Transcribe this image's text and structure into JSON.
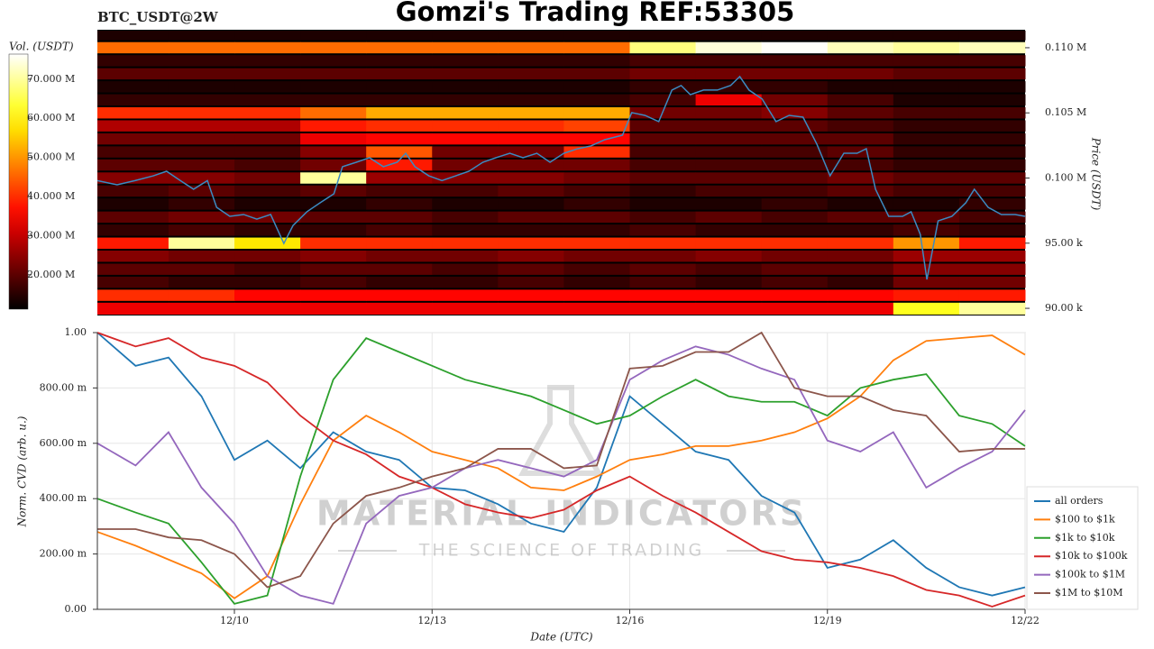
{
  "chart_data": [
    {
      "type": "heatmap",
      "title": "Gomzi's Trading REF:53305",
      "subtitle": "BTC_USDT@2W",
      "y_label": "Price (USDT)",
      "yaxis_position": "right",
      "colorbar_label": "Vol. (USDT)",
      "colormap": "hot",
      "clim": [
        11200000,
        76400000
      ],
      "cticks": [
        {
          "value": 20000000,
          "label": "20.000 M"
        },
        {
          "value": 30000000,
          "label": "30.000 M"
        },
        {
          "value": 40000000,
          "label": "40.000 M"
        },
        {
          "value": 50000000,
          "label": "50.000 M"
        },
        {
          "value": 60000000,
          "label": "60.000 M"
        },
        {
          "value": 70000000,
          "label": "70.000 M"
        }
      ],
      "xlim": [
        7.92,
        22
      ],
      "ylim": [
        89450,
        111380
      ],
      "yticks": [
        {
          "value": 90000,
          "label": "90.00 k"
        },
        {
          "value": 95000,
          "label": "95.00 k"
        },
        {
          "value": 100000,
          "label": "0.100 M"
        },
        {
          "value": 105000,
          "label": "0.105 M"
        },
        {
          "value": 110000,
          "label": "0.110 M"
        }
      ],
      "x_edges": [
        7.92,
        9,
        10,
        11,
        12,
        13,
        14,
        15,
        16,
        17,
        18,
        19,
        20,
        21,
        22
      ],
      "y_edges": [
        89450,
        90500,
        91500,
        92500,
        93500,
        94500,
        95500,
        96500,
        97500,
        98500,
        99500,
        100500,
        101500,
        102500,
        103500,
        104500,
        105500,
        106500,
        107500,
        108500,
        109500,
        110500,
        111380
      ],
      "z": [
        [
          34000000,
          34000000,
          34000000,
          34000000,
          34000000,
          34000000,
          34000000,
          34000000,
          34000000,
          34000000,
          34000000,
          34000000,
          62000000,
          70000000
        ],
        [
          40000000,
          40000000,
          36000000,
          36000000,
          36000000,
          36000000,
          36000000,
          36000000,
          36000000,
          36000000,
          36000000,
          36000000,
          38000000,
          38000000
        ],
        [
          18000000,
          16000000,
          16000000,
          18000000,
          16000000,
          16000000,
          18000000,
          16000000,
          18000000,
          16000000,
          18000000,
          16000000,
          22000000,
          22000000
        ],
        [
          20000000,
          20000000,
          18000000,
          20000000,
          20000000,
          18000000,
          20000000,
          18000000,
          20000000,
          18000000,
          20000000,
          20000000,
          24000000,
          24000000
        ],
        [
          24000000,
          22000000,
          22000000,
          24000000,
          22000000,
          22000000,
          24000000,
          22000000,
          22000000,
          24000000,
          22000000,
          22000000,
          26000000,
          26000000
        ],
        [
          38000000,
          70000000,
          58000000,
          40000000,
          40000000,
          40000000,
          40000000,
          40000000,
          40000000,
          40000000,
          40000000,
          40000000,
          50000000,
          38000000
        ],
        [
          16000000,
          18000000,
          16000000,
          16000000,
          18000000,
          16000000,
          16000000,
          16000000,
          18000000,
          16000000,
          16000000,
          16000000,
          18000000,
          16000000
        ],
        [
          20000000,
          22000000,
          22000000,
          20000000,
          20000000,
          18000000,
          20000000,
          20000000,
          18000000,
          20000000,
          18000000,
          20000000,
          20000000,
          18000000
        ],
        [
          14000000,
          16000000,
          14000000,
          14000000,
          16000000,
          14000000,
          14000000,
          16000000,
          14000000,
          14000000,
          16000000,
          14000000,
          14000000,
          16000000
        ],
        [
          18000000,
          20000000,
          18000000,
          20000000,
          18000000,
          18000000,
          20000000,
          18000000,
          16000000,
          18000000,
          18000000,
          20000000,
          18000000,
          18000000
        ],
        [
          24000000,
          24000000,
          22000000,
          70000000,
          26000000,
          24000000,
          24000000,
          22000000,
          20000000,
          20000000,
          20000000,
          22000000,
          20000000,
          20000000
        ],
        [
          20000000,
          20000000,
          18000000,
          22000000,
          38000000,
          22000000,
          22000000,
          22000000,
          18000000,
          18000000,
          18000000,
          18000000,
          16000000,
          16000000
        ],
        [
          18000000,
          18000000,
          18000000,
          24000000,
          44000000,
          22000000,
          22000000,
          40000000,
          18000000,
          18000000,
          18000000,
          20000000,
          16000000,
          16000000
        ],
        [
          22000000,
          22000000,
          22000000,
          34000000,
          36000000,
          36000000,
          36000000,
          36000000,
          20000000,
          20000000,
          20000000,
          20000000,
          16000000,
          16000000
        ],
        [
          28000000,
          28000000,
          28000000,
          38000000,
          40000000,
          40000000,
          40000000,
          42000000,
          20000000,
          20000000,
          20000000,
          18000000,
          16000000,
          16000000
        ],
        [
          40000000,
          40000000,
          40000000,
          46000000,
          52000000,
          52000000,
          52000000,
          52000000,
          22000000,
          22000000,
          24000000,
          20000000,
          18000000,
          18000000
        ],
        [
          16000000,
          16000000,
          16000000,
          16000000,
          16000000,
          16000000,
          16000000,
          16000000,
          18000000,
          34000000,
          22000000,
          18000000,
          14000000,
          14000000
        ],
        [
          14000000,
          14000000,
          14000000,
          14000000,
          14000000,
          14000000,
          14000000,
          14000000,
          16000000,
          16000000,
          16000000,
          14000000,
          14000000,
          14000000
        ],
        [
          20000000,
          20000000,
          20000000,
          20000000,
          20000000,
          20000000,
          20000000,
          20000000,
          22000000,
          22000000,
          22000000,
          22000000,
          20000000,
          20000000
        ],
        [
          16000000,
          16000000,
          16000000,
          16000000,
          16000000,
          16000000,
          16000000,
          16000000,
          18000000,
          18000000,
          18000000,
          18000000,
          18000000,
          18000000
        ],
        [
          46000000,
          46000000,
          46000000,
          46000000,
          46000000,
          46000000,
          46000000,
          46000000,
          68000000,
          74000000,
          76000000,
          72000000,
          70000000,
          72000000
        ],
        [
          14000000,
          14000000,
          14000000,
          14000000,
          14000000,
          14000000,
          14000000,
          14000000,
          14000000,
          14000000,
          14000000,
          14000000,
          14000000,
          14000000
        ]
      ],
      "line": {
        "color": "#3b8bc2",
        "x": [
          7.92,
          8.22,
          8.49,
          8.77,
          8.97,
          9.18,
          9.38,
          9.59,
          9.73,
          9.93,
          10.14,
          10.34,
          10.55,
          10.75,
          10.89,
          11.1,
          11.3,
          11.51,
          11.64,
          11.85,
          12.05,
          12.26,
          12.47,
          12.6,
          12.74,
          12.95,
          13.15,
          13.36,
          13.56,
          13.77,
          13.97,
          14.18,
          14.38,
          14.59,
          14.79,
          15,
          15.21,
          15.41,
          15.62,
          15.89,
          16.03,
          16.23,
          16.44,
          16.64,
          16.78,
          16.92,
          17.12,
          17.33,
          17.53,
          17.67,
          17.81,
          18.01,
          18.22,
          18.42,
          18.63,
          18.84,
          19.04,
          19.25,
          19.45,
          19.59,
          19.73,
          19.93,
          20.14,
          20.27,
          20.41,
          20.51,
          20.68,
          20.89,
          21.1,
          21.23,
          21.44,
          21.64,
          21.85,
          22
        ],
        "values": [
          99800,
          99480,
          99800,
          100170,
          100520,
          99800,
          99140,
          99800,
          97750,
          97060,
          97200,
          96850,
          97200,
          94980,
          96360,
          97410,
          98100,
          98790,
          100870,
          101210,
          101560,
          100870,
          101210,
          101900,
          100870,
          100170,
          99800,
          100170,
          100520,
          101210,
          101560,
          101900,
          101560,
          101900,
          101210,
          101900,
          102250,
          102460,
          102940,
          103290,
          105020,
          104810,
          104330,
          106750,
          107100,
          106400,
          106750,
          106750,
          107100,
          107790,
          106750,
          106060,
          104330,
          104810,
          104670,
          102600,
          100170,
          101900,
          101900,
          102250,
          99140,
          97060,
          97060,
          97410,
          95670,
          92220,
          96710,
          97060,
          98100,
          99140,
          97750,
          97200,
          97200,
          97060
        ]
      }
    },
    {
      "type": "line",
      "x_label": "Date (UTC)",
      "y_label": "Norm. CVD (arb. u.)",
      "xlim": [
        7.92,
        22
      ],
      "ylim": [
        0,
        1
      ],
      "xticks": [
        {
          "value": 10,
          "label": "12/10"
        },
        {
          "value": 13,
          "label": "12/13"
        },
        {
          "value": 16,
          "label": "12/16"
        },
        {
          "value": 19,
          "label": "12/19"
        },
        {
          "value": 22,
          "label": "12/22"
        }
      ],
      "yticks": [
        {
          "value": 0,
          "label": "0.00"
        },
        {
          "value": 0.2,
          "label": "200.00 m"
        },
        {
          "value": 0.4,
          "label": "400.00 m"
        },
        {
          "value": 0.6,
          "label": "600.00 m"
        },
        {
          "value": 0.8,
          "label": "800.00 m"
        },
        {
          "value": 1,
          "label": "1.00"
        }
      ],
      "grid": true,
      "legend": "lower-right-outside",
      "watermark": [
        "MATERIAL INDICATORS",
        "THE SCIENCE OF TRADING"
      ],
      "x": [
        7.92,
        8.5,
        9,
        9.5,
        10,
        10.5,
        11,
        11.5,
        12,
        12.5,
        13,
        13.5,
        14,
        14.5,
        15,
        15.5,
        16,
        16.5,
        17,
        17.5,
        18,
        18.5,
        19,
        19.5,
        20,
        20.5,
        21,
        21.5,
        22
      ],
      "series": [
        {
          "name": "all orders",
          "color": "#1f77b4",
          "values": [
            1.0,
            0.88,
            0.91,
            0.77,
            0.54,
            0.61,
            0.51,
            0.64,
            0.57,
            0.54,
            0.44,
            0.43,
            0.38,
            0.31,
            0.28,
            0.44,
            0.77,
            0.67,
            0.57,
            0.54,
            0.41,
            0.35,
            0.15,
            0.18,
            0.25,
            0.15,
            0.08,
            0.05,
            0.08
          ]
        },
        {
          "name": "$100 to $1k",
          "color": "#ff7f0e",
          "values": [
            0.28,
            0.23,
            0.18,
            0.13,
            0.04,
            0.12,
            0.38,
            0.61,
            0.7,
            0.64,
            0.57,
            0.54,
            0.51,
            0.44,
            0.43,
            0.48,
            0.54,
            0.56,
            0.59,
            0.59,
            0.61,
            0.64,
            0.69,
            0.77,
            0.9,
            0.97,
            0.98,
            0.99,
            0.92
          ]
        },
        {
          "name": "$1k to $10k",
          "color": "#2ca02c",
          "values": [
            0.4,
            0.35,
            0.31,
            0.17,
            0.02,
            0.05,
            0.48,
            0.83,
            0.98,
            0.93,
            0.88,
            0.83,
            0.8,
            0.77,
            0.72,
            0.67,
            0.7,
            0.77,
            0.83,
            0.77,
            0.75,
            0.75,
            0.7,
            0.8,
            0.83,
            0.85,
            0.7,
            0.67,
            0.59
          ]
        },
        {
          "name": "$10k to $100k",
          "color": "#d62728",
          "values": [
            1.0,
            0.95,
            0.98,
            0.91,
            0.88,
            0.82,
            0.7,
            0.61,
            0.56,
            0.48,
            0.44,
            0.38,
            0.35,
            0.33,
            0.36,
            0.43,
            0.48,
            0.41,
            0.35,
            0.28,
            0.21,
            0.18,
            0.17,
            0.15,
            0.12,
            0.07,
            0.05,
            0.01,
            0.05
          ]
        },
        {
          "name": "$100k to $1M",
          "color": "#9467bd",
          "values": [
            0.6,
            0.52,
            0.64,
            0.44,
            0.31,
            0.12,
            0.05,
            0.02,
            0.31,
            0.41,
            0.44,
            0.51,
            0.54,
            0.51,
            0.48,
            0.54,
            0.83,
            0.9,
            0.95,
            0.92,
            0.87,
            0.83,
            0.61,
            0.57,
            0.64,
            0.44,
            0.51,
            0.57,
            0.72
          ]
        },
        {
          "name": "$1M to $10M",
          "color": "#8c564b",
          "values": [
            0.29,
            0.29,
            0.26,
            0.25,
            0.2,
            0.08,
            0.12,
            0.31,
            0.41,
            0.44,
            0.48,
            0.51,
            0.58,
            0.58,
            0.51,
            0.52,
            0.87,
            0.88,
            0.93,
            0.93,
            1.0,
            0.8,
            0.77,
            0.77,
            0.72,
            0.7,
            0.57,
            0.58,
            0.58
          ]
        }
      ]
    }
  ]
}
